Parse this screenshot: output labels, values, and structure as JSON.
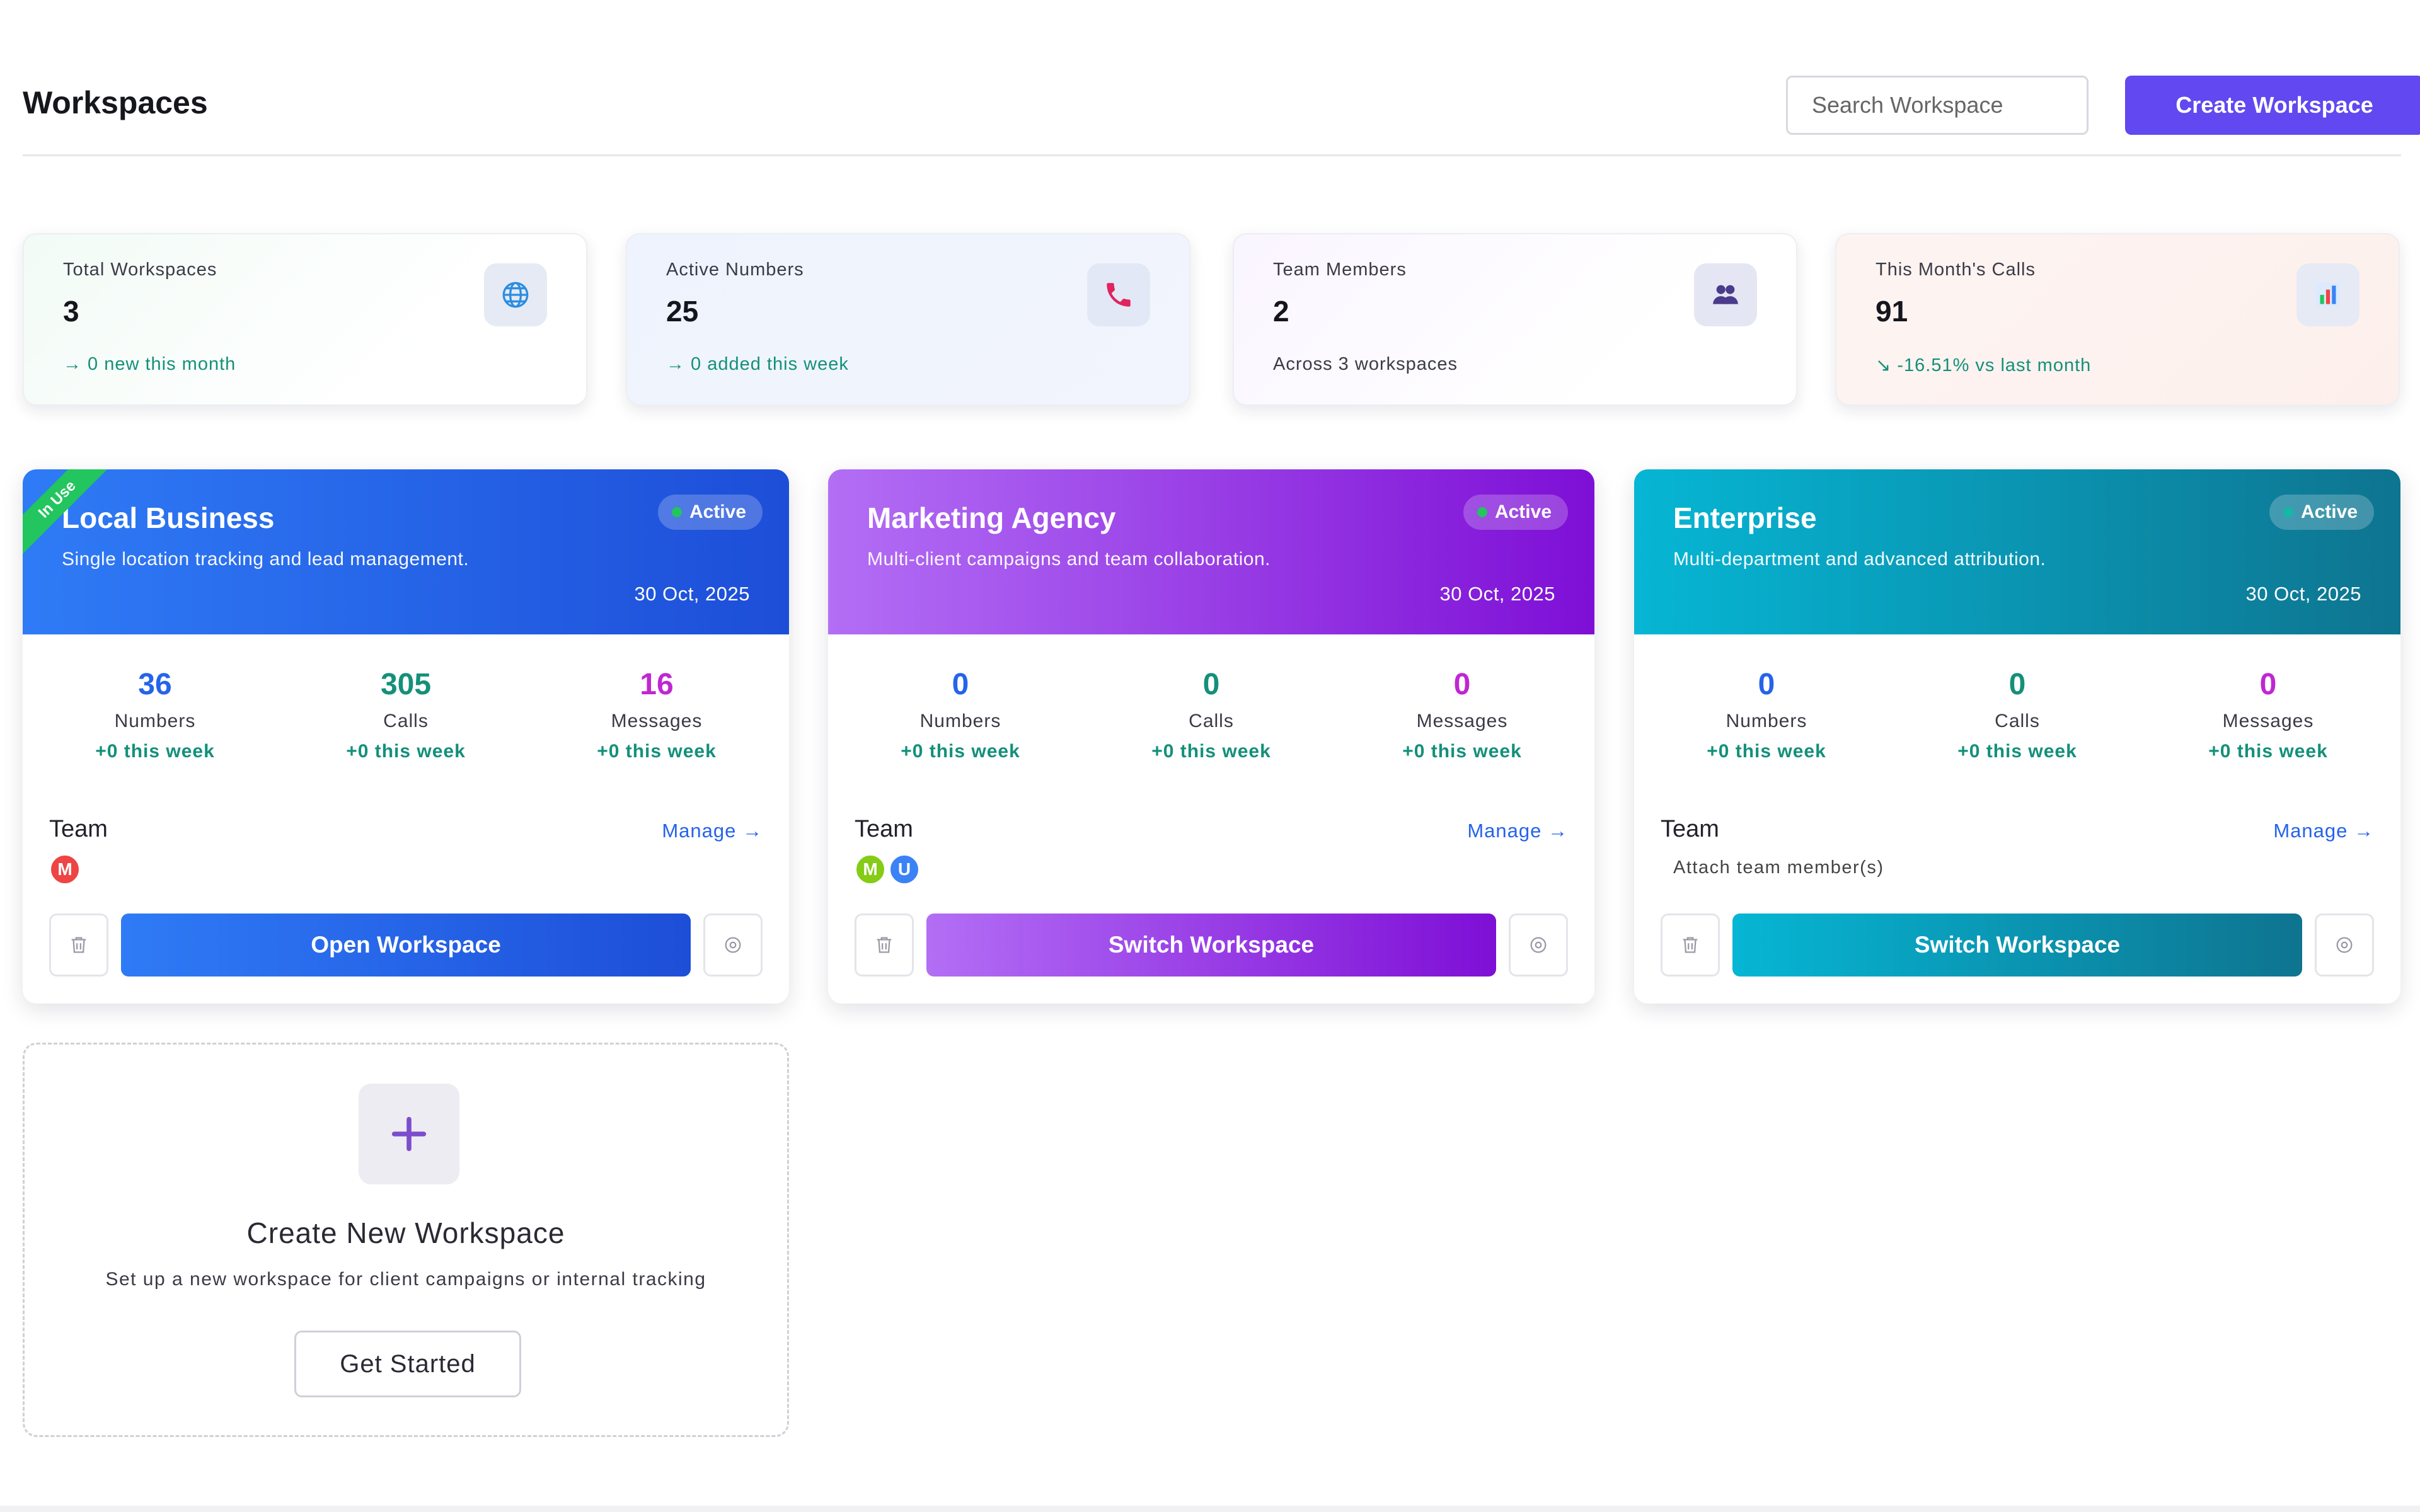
{
  "header": {
    "title": "Workspaces",
    "search_placeholder": "Search Workspace",
    "create_label": "Create Workspace"
  },
  "stats": [
    {
      "label": "Total Workspaces",
      "value": "3",
      "footer": "→ 0 new this month",
      "icon": "globe-icon"
    },
    {
      "label": "Active Numbers",
      "value": "25",
      "footer": "→ 0 added this week",
      "icon": "phone-icon"
    },
    {
      "label": "Team Members",
      "value": "2",
      "footer": "Across 3 workspaces",
      "icon": "users-icon"
    },
    {
      "label": "This Month's Calls",
      "value": "91",
      "footer": "↘ -16.51% vs last month",
      "icon": "bar-chart-icon"
    }
  ],
  "workspaces": [
    {
      "name": "Local Business",
      "description": "Single location tracking and lead management.",
      "date": "30 Oct, 2025",
      "status": "Active",
      "ribbon": "In Use",
      "metrics": [
        {
          "value": "36",
          "label": "Numbers",
          "delta": "+0 this week",
          "color": "#2563eb"
        },
        {
          "value": "305",
          "label": "Calls",
          "delta": "+0 this week",
          "color": "#14907a"
        },
        {
          "value": "16",
          "label": "Messages",
          "delta": "+0 this week",
          "color": "#c026d3"
        }
      ],
      "team_label": "Team",
      "manage_label": "Manage →",
      "avatars": [
        {
          "initial": "M",
          "color": "#ef4444"
        }
      ],
      "action_label": "Open Workspace",
      "gradient": [
        "#2f7bf6",
        "#1d4ed8"
      ]
    },
    {
      "name": "Marketing Agency",
      "description": "Multi-client campaigns and team collaboration.",
      "date": "30 Oct, 2025",
      "status": "Active",
      "metrics": [
        {
          "value": "0",
          "label": "Numbers",
          "delta": "+0 this week",
          "color": "#2563eb"
        },
        {
          "value": "0",
          "label": "Calls",
          "delta": "+0 this week",
          "color": "#14907a"
        },
        {
          "value": "0",
          "label": "Messages",
          "delta": "+0 this week",
          "color": "#c026d3"
        }
      ],
      "team_label": "Team",
      "manage_label": "Manage →",
      "avatars": [
        {
          "initial": "M",
          "color": "#84cc16"
        },
        {
          "initial": "U",
          "color": "#3b82f6"
        }
      ],
      "action_label": "Switch Workspace",
      "gradient": [
        "#b36ef5",
        "#7e0fd6"
      ]
    },
    {
      "name": "Enterprise",
      "description": "Multi-department and advanced attribution.",
      "date": "30 Oct, 2025",
      "status": "Active",
      "metrics": [
        {
          "value": "0",
          "label": "Numbers",
          "delta": "+0 this week",
          "color": "#2563eb"
        },
        {
          "value": "0",
          "label": "Calls",
          "delta": "+0 this week",
          "color": "#14907a"
        },
        {
          "value": "0",
          "label": "Messages",
          "delta": "+0 this week",
          "color": "#c026d3"
        }
      ],
      "team_label": "Team",
      "manage_label": "Manage →",
      "attach_text": "Attach team member(s)",
      "action_label": "Switch Workspace",
      "gradient": [
        "#06b6d4",
        "#0e7490"
      ]
    }
  ],
  "create_new": {
    "title": "Create New Workspace",
    "description": "Set up a new workspace for client campaigns or internal tracking",
    "button_label": "Get Started"
  }
}
